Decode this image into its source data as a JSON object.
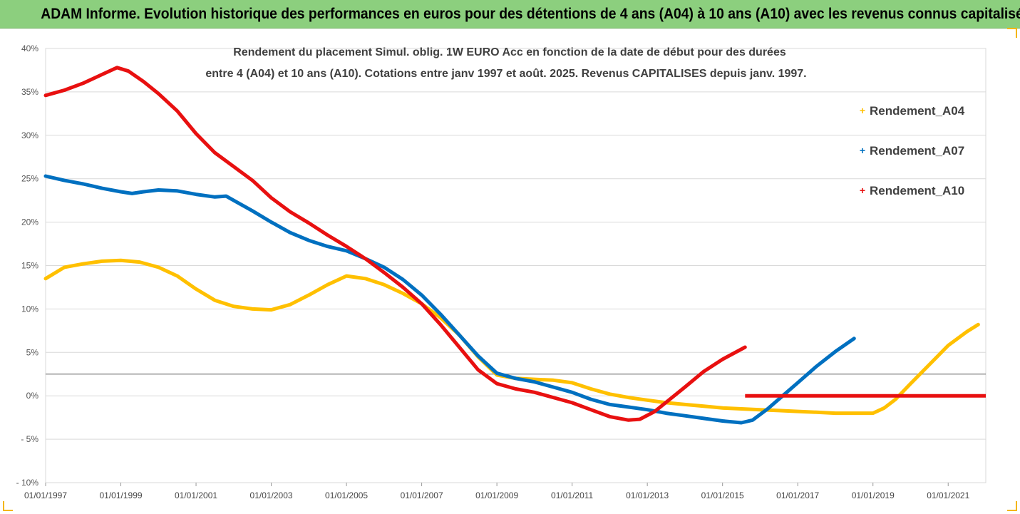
{
  "header": {
    "title": "ADAM Informe. Evolution historique des performances en euros pour des détentions de 4 ans (A04) à 10 ans (A10) avec les revenus connus capitalisés"
  },
  "chart_data": {
    "type": "line",
    "title_lines": [
      "Rendement du placement Simul. oblig. 1W EURO Acc en fonction de la date de début pour des durées",
      "entre 4 (A04) et 10 ans (A10). Cotations entre janv 1997 et août. 2025. Revenus CAPITALISES depuis janv. 1997."
    ],
    "xlabel": "",
    "ylabel": "",
    "x_range": [
      1997.0,
      2022.0
    ],
    "x_ticks": [
      {
        "x": 1997,
        "label": "01/01/1997"
      },
      {
        "x": 1999,
        "label": "01/01/1999"
      },
      {
        "x": 2001,
        "label": "01/01/2001"
      },
      {
        "x": 2003,
        "label": "01/01/2003"
      },
      {
        "x": 2005,
        "label": "01/01/2005"
      },
      {
        "x": 2007,
        "label": "01/01/2007"
      },
      {
        "x": 2009,
        "label": "01/01/2009"
      },
      {
        "x": 2011,
        "label": "01/01/2011"
      },
      {
        "x": 2013,
        "label": "01/01/2013"
      },
      {
        "x": 2015,
        "label": "01/01/2015"
      },
      {
        "x": 2017,
        "label": "01/01/2017"
      },
      {
        "x": 2019,
        "label": "01/01/2019"
      },
      {
        "x": 2021,
        "label": "01/01/2021"
      }
    ],
    "y_range": [
      -10,
      40
    ],
    "y_ticks": [
      {
        "y": 40,
        "label": "40%"
      },
      {
        "y": 35,
        "label": "35%"
      },
      {
        "y": 30,
        "label": "30%"
      },
      {
        "y": 25,
        "label": "25%"
      },
      {
        "y": 20,
        "label": "20%"
      },
      {
        "y": 15,
        "label": "15%"
      },
      {
        "y": 10,
        "label": "10%"
      },
      {
        "y": 5,
        "label": "5%"
      },
      {
        "y": 0,
        "label": "0%"
      },
      {
        "y": -5,
        "label": "- 5%"
      },
      {
        "y": -10,
        "label": "- 10%"
      }
    ],
    "grid": "horizontal",
    "reference_line_y": 2.5,
    "legend_position": "right",
    "series": [
      {
        "name": "Rendement_A04",
        "color": "#ffc000",
        "points": [
          [
            1997.0,
            13.5
          ],
          [
            1997.5,
            14.8
          ],
          [
            1998.0,
            15.2
          ],
          [
            1998.5,
            15.5
          ],
          [
            1999.0,
            15.6
          ],
          [
            1999.5,
            15.4
          ],
          [
            2000.0,
            14.8
          ],
          [
            2000.5,
            13.8
          ],
          [
            2001.0,
            12.3
          ],
          [
            2001.5,
            11.0
          ],
          [
            2002.0,
            10.3
          ],
          [
            2002.5,
            10.0
          ],
          [
            2003.0,
            9.9
          ],
          [
            2003.5,
            10.5
          ],
          [
            2004.0,
            11.6
          ],
          [
            2004.5,
            12.8
          ],
          [
            2005.0,
            13.8
          ],
          [
            2005.5,
            13.5
          ],
          [
            2006.0,
            12.8
          ],
          [
            2006.5,
            11.8
          ],
          [
            2007.0,
            10.6
          ],
          [
            2007.5,
            9.0
          ],
          [
            2008.0,
            7.0
          ],
          [
            2008.5,
            4.5
          ],
          [
            2009.0,
            2.4
          ],
          [
            2009.5,
            2.0
          ],
          [
            2010.0,
            1.9
          ],
          [
            2010.5,
            1.8
          ],
          [
            2011.0,
            1.5
          ],
          [
            2011.5,
            0.8
          ],
          [
            2012.0,
            0.2
          ],
          [
            2012.5,
            -0.2
          ],
          [
            2013.0,
            -0.5
          ],
          [
            2013.5,
            -0.8
          ],
          [
            2014.0,
            -1.0
          ],
          [
            2014.5,
            -1.2
          ],
          [
            2015.0,
            -1.4
          ],
          [
            2015.5,
            -1.5
          ],
          [
            2016.0,
            -1.6
          ],
          [
            2016.5,
            -1.7
          ],
          [
            2017.0,
            -1.8
          ],
          [
            2017.5,
            -1.9
          ],
          [
            2018.0,
            -2.0
          ],
          [
            2018.5,
            -2.0
          ],
          [
            2019.0,
            -2.0
          ],
          [
            2019.3,
            -1.4
          ],
          [
            2019.6,
            -0.4
          ],
          [
            2020.0,
            1.4
          ],
          [
            2020.5,
            3.6
          ],
          [
            2021.0,
            5.8
          ],
          [
            2021.5,
            7.4
          ],
          [
            2021.8,
            8.2
          ]
        ]
      },
      {
        "name": "Rendement_A07",
        "color": "#0070c0",
        "points": [
          [
            1997.0,
            25.3
          ],
          [
            1997.5,
            24.8
          ],
          [
            1998.0,
            24.4
          ],
          [
            1998.5,
            23.9
          ],
          [
            1999.0,
            23.5
          ],
          [
            1999.3,
            23.3
          ],
          [
            1999.6,
            23.5
          ],
          [
            2000.0,
            23.7
          ],
          [
            2000.5,
            23.6
          ],
          [
            2001.0,
            23.2
          ],
          [
            2001.5,
            22.9
          ],
          [
            2001.8,
            23.0
          ],
          [
            2002.0,
            22.5
          ],
          [
            2002.5,
            21.3
          ],
          [
            2003.0,
            20.0
          ],
          [
            2003.5,
            18.8
          ],
          [
            2004.0,
            17.9
          ],
          [
            2004.5,
            17.2
          ],
          [
            2005.0,
            16.7
          ],
          [
            2005.5,
            15.8
          ],
          [
            2006.0,
            14.8
          ],
          [
            2006.5,
            13.4
          ],
          [
            2007.0,
            11.6
          ],
          [
            2007.5,
            9.4
          ],
          [
            2008.0,
            7.0
          ],
          [
            2008.5,
            4.6
          ],
          [
            2009.0,
            2.6
          ],
          [
            2009.5,
            2.0
          ],
          [
            2010.0,
            1.6
          ],
          [
            2010.5,
            1.0
          ],
          [
            2011.0,
            0.4
          ],
          [
            2011.5,
            -0.4
          ],
          [
            2012.0,
            -1.0
          ],
          [
            2012.5,
            -1.3
          ],
          [
            2013.0,
            -1.6
          ],
          [
            2013.5,
            -2.0
          ],
          [
            2014.0,
            -2.3
          ],
          [
            2014.5,
            -2.6
          ],
          [
            2015.0,
            -2.9
          ],
          [
            2015.5,
            -3.1
          ],
          [
            2015.8,
            -2.8
          ],
          [
            2016.2,
            -1.5
          ],
          [
            2016.6,
            0.0
          ],
          [
            2017.0,
            1.5
          ],
          [
            2017.5,
            3.4
          ],
          [
            2018.0,
            5.1
          ],
          [
            2018.5,
            6.6
          ]
        ]
      },
      {
        "name": "Rendement_A10",
        "color": "#e81010",
        "points": [
          [
            1997.0,
            34.6
          ],
          [
            1997.5,
            35.2
          ],
          [
            1998.0,
            36.0
          ],
          [
            1998.5,
            37.0
          ],
          [
            1998.9,
            37.8
          ],
          [
            1999.2,
            37.4
          ],
          [
            1999.6,
            36.2
          ],
          [
            2000.0,
            34.8
          ],
          [
            2000.5,
            32.8
          ],
          [
            2001.0,
            30.2
          ],
          [
            2001.5,
            28.0
          ],
          [
            2002.0,
            26.4
          ],
          [
            2002.5,
            24.8
          ],
          [
            2003.0,
            22.8
          ],
          [
            2003.5,
            21.2
          ],
          [
            2004.0,
            19.9
          ],
          [
            2004.5,
            18.5
          ],
          [
            2005.0,
            17.2
          ],
          [
            2005.5,
            15.8
          ],
          [
            2006.0,
            14.2
          ],
          [
            2006.5,
            12.5
          ],
          [
            2007.0,
            10.6
          ],
          [
            2007.5,
            8.2
          ],
          [
            2008.0,
            5.6
          ],
          [
            2008.5,
            3.0
          ],
          [
            2009.0,
            1.4
          ],
          [
            2009.5,
            0.8
          ],
          [
            2010.0,
            0.4
          ],
          [
            2010.5,
            -0.2
          ],
          [
            2011.0,
            -0.8
          ],
          [
            2011.5,
            -1.6
          ],
          [
            2012.0,
            -2.4
          ],
          [
            2012.5,
            -2.8
          ],
          [
            2012.8,
            -2.7
          ],
          [
            2013.2,
            -1.8
          ],
          [
            2013.6,
            -0.4
          ],
          [
            2014.0,
            1.0
          ],
          [
            2014.5,
            2.8
          ],
          [
            2015.0,
            4.2
          ],
          [
            2015.6,
            5.6
          ]
        ],
        "extra_segment": [
          [
            2015.6,
            0.0
          ],
          [
            2022.0,
            0.0
          ]
        ]
      }
    ]
  }
}
